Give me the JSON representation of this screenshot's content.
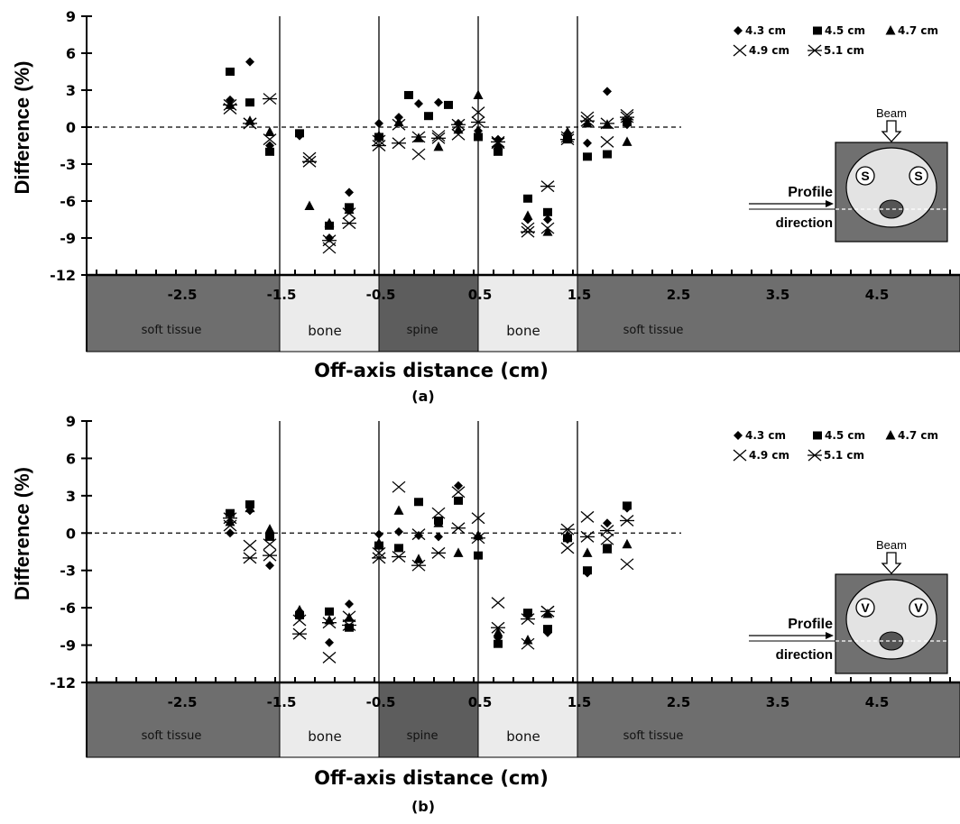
{
  "chart_data": [
    {
      "type": "scatter",
      "panel_label": "(a)",
      "xlabel": "Off-axis distance (cm)",
      "ylabel": "Difference (%)",
      "ylim": [
        -12,
        9
      ],
      "yticks": [
        "9",
        "6",
        "3",
        "0",
        "-3",
        "-6",
        "-9",
        "-12"
      ],
      "xticks": [
        "-2.5",
        "-1.5",
        "-0.5",
        "0.5",
        "1.5",
        "2.5",
        "3.5",
        "4.5"
      ],
      "regions": [
        "soft tissue",
        "bone",
        "spine",
        "bone",
        "soft tissue"
      ],
      "legend": {
        "row1": [
          "4.3 cm",
          "4.5 cm",
          "4.7 cm"
        ],
        "row2": [
          "4.9 cm",
          "5.1 cm"
        ]
      },
      "inset": {
        "beam": "Beam",
        "profile": "Profile",
        "direction": "direction",
        "marker_letter": "S"
      },
      "series": [
        {
          "name": "4.3 cm",
          "x": [
            -2.0,
            -1.8,
            -1.6,
            -1.3,
            -1.0,
            -0.8,
            -0.5,
            -0.3,
            -0.1,
            0.1,
            0.3,
            0.5,
            0.7,
            1.0,
            1.2,
            1.4,
            1.6,
            1.8,
            2.0
          ],
          "y": [
            2.2,
            5.3,
            -1.5,
            -0.7,
            -9.0,
            -5.3,
            0.3,
            0.8,
            1.9,
            2.0,
            0.3,
            -0.3,
            -1.0,
            -7.5,
            -7.5,
            -0.5,
            -1.3,
            2.9,
            0.2
          ]
        },
        {
          "name": "4.5 cm",
          "x": [
            -2.0,
            -1.8,
            -1.6,
            -1.3,
            -1.0,
            -0.8,
            -0.5,
            -0.2,
            0.0,
            0.2,
            0.5,
            0.7,
            1.0,
            1.2,
            1.4,
            1.6,
            1.8,
            2.0
          ],
          "y": [
            4.5,
            2.0,
            -2.0,
            -0.5,
            -8.0,
            -6.5,
            -0.8,
            2.6,
            0.9,
            1.8,
            -0.8,
            -2.0,
            -5.8,
            -6.9,
            -1.0,
            -2.4,
            -2.2,
            0.4
          ]
        },
        {
          "name": "4.7 cm",
          "x": [
            -2.0,
            -1.8,
            -1.6,
            -1.2,
            -1.0,
            -0.8,
            -0.5,
            -0.3,
            -0.1,
            0.1,
            0.3,
            0.5,
            0.7,
            1.0,
            1.2,
            1.4,
            1.6,
            1.8,
            2.0
          ],
          "y": [
            1.8,
            0.5,
            -0.4,
            -6.4,
            -7.8,
            -6.7,
            -0.7,
            0.4,
            -0.9,
            -1.6,
            -0.2,
            2.6,
            -1.5,
            -7.2,
            -8.5,
            -0.4,
            0.3,
            0.2,
            -1.2
          ]
        },
        {
          "name": "4.9 cm",
          "x": [
            -2.0,
            -1.8,
            -1.6,
            -1.2,
            -1.0,
            -0.8,
            -0.5,
            -0.3,
            -0.1,
            0.1,
            0.3,
            0.5,
            0.7,
            1.0,
            1.2,
            1.4,
            1.6,
            1.8,
            2.0
          ],
          "y": [
            1.5,
            0.3,
            -1.0,
            -2.5,
            -9.8,
            -7.0,
            -1.1,
            0.2,
            -2.2,
            -0.7,
            -0.6,
            1.2,
            -1.3,
            -8.2,
            -8.2,
            -0.8,
            0.8,
            -1.2,
            1.0
          ]
        },
        {
          "name": "5.1 cm",
          "x": [
            -2.0,
            -1.8,
            -1.6,
            -1.2,
            -1.0,
            -0.8,
            -0.5,
            -0.3,
            -0.1,
            0.1,
            0.3,
            0.5,
            0.7,
            1.0,
            1.2,
            1.4,
            1.6,
            1.8,
            2.0
          ],
          "y": [
            1.8,
            0.3,
            2.3,
            -2.8,
            -9.2,
            -7.8,
            -1.5,
            -1.3,
            -0.8,
            -0.9,
            0.2,
            0.4,
            -1.2,
            -8.5,
            -4.8,
            -1.0,
            0.5,
            0.3,
            0.8
          ]
        }
      ]
    },
    {
      "type": "scatter",
      "panel_label": "(b)",
      "xlabel": "Off-axis distance (cm)",
      "ylabel": "Difference (%)",
      "ylim": [
        -12,
        9
      ],
      "yticks": [
        "9",
        "6",
        "3",
        "0",
        "-3",
        "-6",
        "-9",
        "-12"
      ],
      "xticks": [
        "-2.5",
        "-1.5",
        "-0.5",
        "0.5",
        "1.5",
        "2.5",
        "3.5",
        "4.5"
      ],
      "regions": [
        "soft tissue",
        "bone",
        "spine",
        "bone",
        "soft tissue"
      ],
      "legend": {
        "row1": [
          "4.3 cm",
          "4.5 cm",
          "4.7 cm"
        ],
        "row2": [
          "4.9 cm",
          "5.1 cm"
        ]
      },
      "inset": {
        "beam": "Beam",
        "profile": "Profile",
        "direction": "direction",
        "marker_letter": "V"
      },
      "series": [
        {
          "name": "4.3 cm",
          "x": [
            -2.0,
            -1.8,
            -1.6,
            -1.3,
            -1.0,
            -0.8,
            -0.5,
            -0.3,
            -0.1,
            0.1,
            0.3,
            0.5,
            0.7,
            1.0,
            1.2,
            1.4,
            1.6,
            1.8,
            2.0
          ],
          "y": [
            0.0,
            1.8,
            -2.6,
            -6.3,
            -8.8,
            -5.7,
            -0.1,
            0.1,
            -0.2,
            -0.3,
            3.8,
            -0.3,
            -8.4,
            -6.6,
            -8.0,
            -0.5,
            -3.2,
            0.8,
            2.0
          ]
        },
        {
          "name": "4.5 cm",
          "x": [
            -2.0,
            -1.8,
            -1.6,
            -1.3,
            -1.0,
            -0.8,
            -0.5,
            -0.3,
            -0.1,
            0.1,
            0.3,
            0.5,
            0.7,
            1.0,
            1.2,
            1.4,
            1.6,
            1.8,
            2.0
          ],
          "y": [
            1.6,
            2.3,
            -0.3,
            -6.6,
            -6.3,
            -7.6,
            -1.0,
            -1.2,
            2.5,
            1.0,
            2.6,
            -1.8,
            -8.9,
            -6.4,
            -7.7,
            -0.4,
            -3.0,
            -1.2,
            2.2
          ]
        },
        {
          "name": "4.7 cm",
          "x": [
            -2.0,
            -1.8,
            -1.6,
            -1.3,
            -1.0,
            -0.8,
            -0.5,
            -0.3,
            -0.1,
            0.1,
            0.3,
            0.5,
            0.7,
            1.0,
            1.2,
            1.4,
            1.6,
            1.8,
            2.0
          ],
          "y": [
            0.9,
            2.0,
            0.3,
            -6.2,
            -7.0,
            -6.8,
            -0.8,
            1.8,
            -2.1,
            0.8,
            -1.6,
            -0.2,
            -8.0,
            -8.6,
            -6.5,
            -0.2,
            -1.6,
            -1.3,
            -0.9
          ]
        },
        {
          "name": "4.9 cm",
          "x": [
            -2.0,
            -1.8,
            -1.6,
            -1.3,
            -1.0,
            -0.8,
            -0.5,
            -0.3,
            -0.1,
            0.1,
            0.3,
            0.5,
            0.7,
            1.0,
            1.2,
            1.4,
            1.6,
            1.8,
            2.0
          ],
          "y": [
            0.6,
            -1.0,
            -0.9,
            -7.0,
            -10.0,
            -6.7,
            -1.6,
            3.7,
            -0.1,
            1.6,
            3.3,
            1.2,
            -5.6,
            -8.9,
            -6.3,
            -1.2,
            1.3,
            -0.5,
            -2.5
          ]
        },
        {
          "name": "5.1 cm",
          "x": [
            -2.0,
            -1.8,
            -1.6,
            -1.3,
            -1.0,
            -0.8,
            -0.5,
            -0.3,
            -0.1,
            0.1,
            0.3,
            0.5,
            0.7,
            1.0,
            1.2,
            1.4,
            1.6,
            1.8,
            2.0
          ],
          "y": [
            1.2,
            -2.0,
            -1.8,
            -8.1,
            -7.2,
            -7.4,
            -2.0,
            -1.9,
            -2.6,
            -1.6,
            0.4,
            -0.4,
            -7.6,
            -6.9,
            -6.3,
            0.3,
            -0.3,
            0.2,
            1.0
          ]
        }
      ]
    }
  ]
}
